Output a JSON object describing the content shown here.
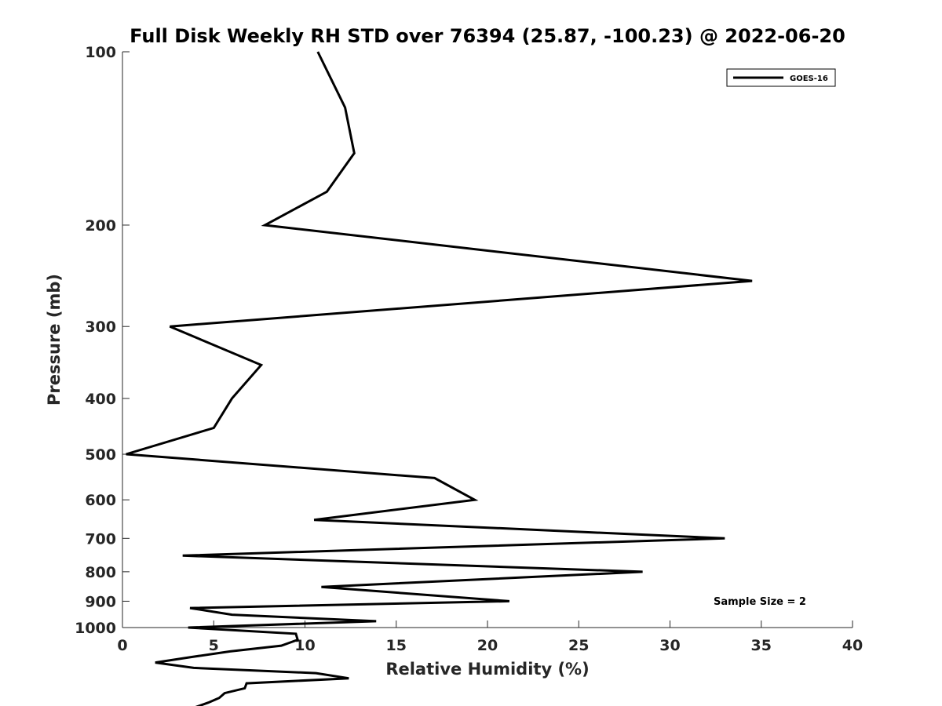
{
  "chart_data": {
    "type": "line",
    "title": "Full Disk Weekly RH STD over 76394 (25.87, -100.23) @ 2022-06-20",
    "xlabel": "Relative Humidity (%)",
    "ylabel": "Pressure (mb)",
    "xlim": [
      0,
      40
    ],
    "ylim": [
      100,
      1000
    ],
    "y_scale": "log",
    "y_reversed": true,
    "x_ticks": [
      "0",
      "5",
      "10",
      "15",
      "20",
      "25",
      "30",
      "35",
      "40"
    ],
    "y_ticks": [
      "100",
      "200",
      "300",
      "400",
      "500",
      "600",
      "700",
      "800",
      "900",
      "1000"
    ],
    "grid": false,
    "legend_position": "top-right",
    "series": [
      {
        "name": "GOES-16",
        "color": "#000000",
        "points": [
          {
            "rh": 10.7,
            "p": 100
          },
          {
            "rh": 12.2,
            "p": 125
          },
          {
            "rh": 12.7,
            "p": 150
          },
          {
            "rh": 11.2,
            "p": 175
          },
          {
            "rh": 7.8,
            "p": 200
          },
          {
            "rh": 34.5,
            "p": 250
          },
          {
            "rh": 2.6,
            "p": 300
          },
          {
            "rh": 7.6,
            "p": 350
          },
          {
            "rh": 6.0,
            "p": 400
          },
          {
            "rh": 5.0,
            "p": 450
          },
          {
            "rh": 0.2,
            "p": 500
          },
          {
            "rh": 17.1,
            "p": 550
          },
          {
            "rh": 19.3,
            "p": 600
          },
          {
            "rh": 10.5,
            "p": 650
          },
          {
            "rh": 33.0,
            "p": 700
          },
          {
            "rh": 3.3,
            "p": 750
          },
          {
            "rh": 28.5,
            "p": 800
          },
          {
            "rh": 10.9,
            "p": 850
          },
          {
            "rh": 21.2,
            "p": 900
          },
          {
            "rh": 3.7,
            "p": 925
          },
          {
            "rh": 6.0,
            "p": 950
          },
          {
            "rh": 13.9,
            "p": 975
          },
          {
            "rh": 3.6,
            "p": 1000
          },
          {
            "rh": 9.5,
            "p": 1025
          },
          {
            "rh": 9.6,
            "p": 1050
          },
          {
            "rh": 8.7,
            "p": 1075
          },
          {
            "rh": 5.9,
            "p": 1100
          },
          {
            "rh": 3.8,
            "p": 1125
          },
          {
            "rh": 1.8,
            "p": 1150
          },
          {
            "rh": 3.9,
            "p": 1175
          },
          {
            "rh": 10.6,
            "p": 1200
          },
          {
            "rh": 12.4,
            "p": 1225
          },
          {
            "rh": 6.8,
            "p": 1250
          },
          {
            "rh": 6.7,
            "p": 1275
          },
          {
            "rh": 5.6,
            "p": 1300
          },
          {
            "rh": 5.3,
            "p": 1325
          },
          {
            "rh": 4.7,
            "p": 1350
          },
          {
            "rh": 4.0,
            "p": 1375
          }
        ]
      }
    ],
    "annotation": "Sample Size = 2"
  }
}
